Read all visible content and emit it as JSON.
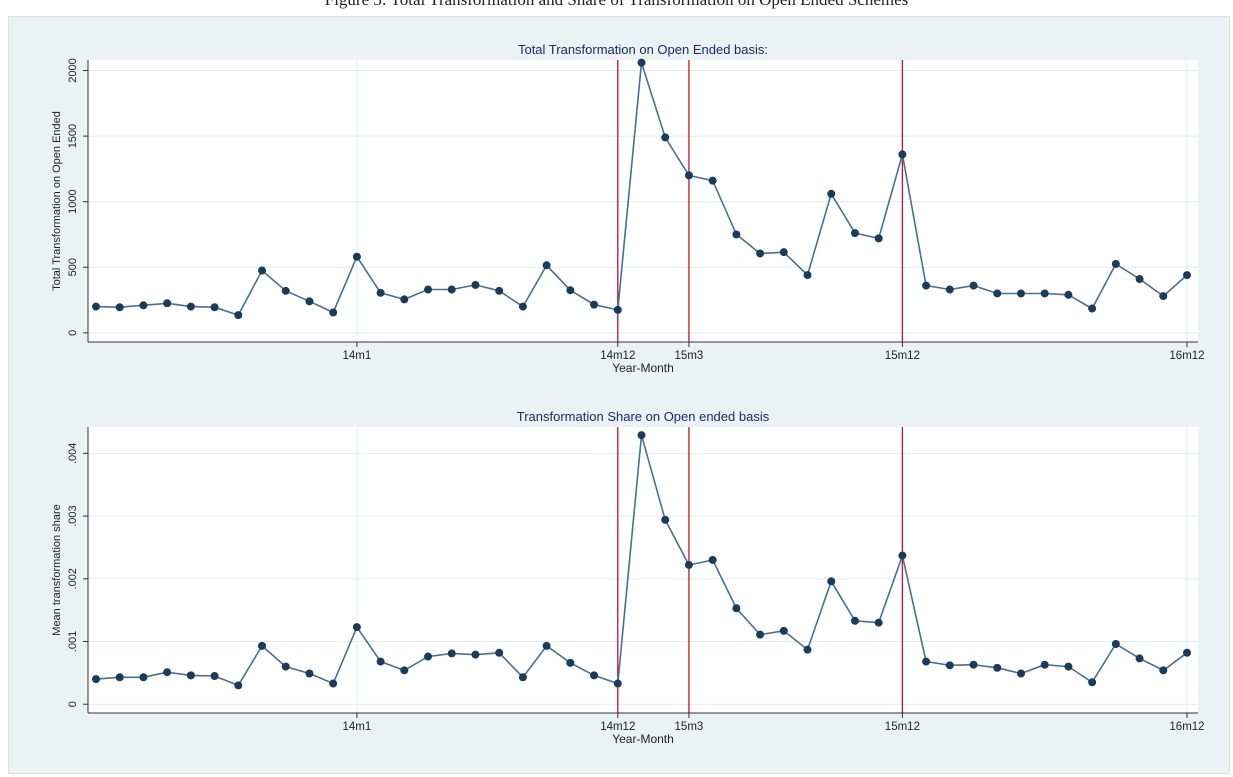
{
  "caption": "Figure 3: Total Transformation and Share of Transformation on Open Ended Schemes",
  "colors": {
    "background": "#eaf2f3",
    "plot_background": "#ffffff",
    "line": "#4a6f8f",
    "marker": "#1a3b5c",
    "event_line": "#c8102e",
    "grid": "#e2ecef",
    "title": "#1a2a6c"
  },
  "chart_data": [
    {
      "type": "line",
      "title": "Total Transformation on Open Ended basis:",
      "xlabel": "Year-Month",
      "ylabel": "Total Transformation on Open Ended",
      "x_ticks": [
        {
          "label": "14m1",
          "index": 11
        },
        {
          "label": "14m12",
          "index": 22
        },
        {
          "label": "15m3",
          "index": 25
        },
        {
          "label": "15m12",
          "index": 34
        },
        {
          "label": "16m12",
          "index": 46
        }
      ],
      "event_lines_at_index": [
        22,
        25,
        34
      ],
      "y_ticks": [
        {
          "label": "0",
          "value": 0
        },
        {
          "label": "500",
          "value": 500
        },
        {
          "label": "1000",
          "value": 1000
        },
        {
          "label": "1500",
          "value": 1500
        },
        {
          "label": "2000",
          "value": 2000
        }
      ],
      "ylim": [
        -70,
        2080
      ],
      "grid": true,
      "series": [
        {
          "values": [
            200,
            195,
            210,
            225,
            200,
            195,
            135,
            475,
            320,
            240,
            155,
            580,
            305,
            255,
            330,
            330,
            365,
            320,
            200,
            515,
            325,
            215,
            175,
            2060,
            1490,
            1200,
            1160,
            750,
            605,
            615,
            440,
            1060,
            760,
            720,
            1360,
            360,
            330,
            360,
            300,
            300,
            300,
            290,
            185,
            525,
            410,
            280,
            440
          ]
        }
      ]
    },
    {
      "type": "line",
      "title": "Transformation Share on Open ended basis",
      "xlabel": "Year-Month",
      "ylabel": "Mean transformation share",
      "x_ticks": [
        {
          "label": "14m1",
          "index": 11
        },
        {
          "label": "14m12",
          "index": 22
        },
        {
          "label": "15m3",
          "index": 25
        },
        {
          "label": "15m12",
          "index": 34
        },
        {
          "label": "16m12",
          "index": 46
        }
      ],
      "event_lines_at_index": [
        22,
        25,
        34
      ],
      "y_ticks": [
        {
          "label": "0",
          "value": 0
        },
        {
          "label": ".001",
          "value": 0.001
        },
        {
          "label": ".002",
          "value": 0.002
        },
        {
          "label": ".003",
          "value": 0.003
        },
        {
          "label": ".004",
          "value": 0.004
        }
      ],
      "ylim": [
        -0.00014,
        0.00442
      ],
      "grid": true,
      "series": [
        {
          "values": [
            0.0004,
            0.00043,
            0.00043,
            0.00051,
            0.00046,
            0.00045,
            0.0003,
            0.00093,
            0.0006,
            0.00049,
            0.00033,
            0.00123,
            0.00068,
            0.00054,
            0.00076,
            0.00081,
            0.00079,
            0.00082,
            0.00043,
            0.00093,
            0.00066,
            0.00046,
            0.00033,
            0.00429,
            0.00294,
            0.00222,
            0.0023,
            0.00153,
            0.00111,
            0.00117,
            0.00087,
            0.00196,
            0.00133,
            0.0013,
            0.00237,
            0.00068,
            0.00062,
            0.00063,
            0.00058,
            0.00049,
            0.00063,
            0.0006,
            0.00035,
            0.00096,
            0.00073,
            0.00054,
            0.00082
          ]
        }
      ]
    }
  ]
}
